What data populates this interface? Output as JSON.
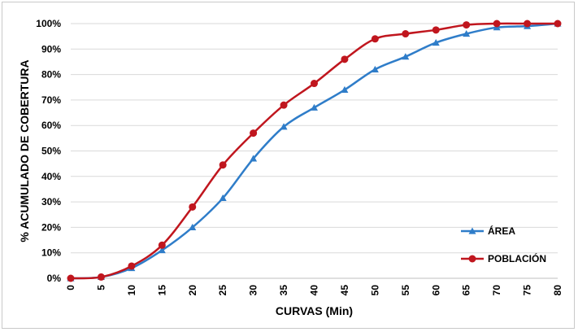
{
  "chart_data": {
    "type": "line",
    "title": "",
    "xlabel": "CURVAS (Min)",
    "ylabel": "% ACUMULADO  DE COBERTURA",
    "x": [
      0,
      5,
      10,
      15,
      20,
      25,
      30,
      35,
      40,
      45,
      50,
      55,
      60,
      65,
      70,
      75,
      80
    ],
    "xlim": [
      0,
      80
    ],
    "ylim": [
      0,
      100
    ],
    "x_ticks": [
      "0",
      "5",
      "10",
      "15",
      "20",
      "25",
      "30",
      "35",
      "40",
      "45",
      "50",
      "55",
      "60",
      "65",
      "70",
      "75",
      "80"
    ],
    "y_ticks": [
      "0%",
      "10%",
      "20%",
      "30%",
      "40%",
      "50%",
      "60%",
      "70%",
      "80%",
      "90%",
      "100%"
    ],
    "grid": "horizontal",
    "legend_position": "right",
    "series": [
      {
        "name": "ÁREA",
        "color": "#2f7dc9",
        "marker": "triangle",
        "values": [
          0,
          0.5,
          4,
          11,
          20,
          31.5,
          47,
          59.5,
          67,
          74,
          82,
          87,
          92.5,
          96,
          98.5,
          99,
          100
        ]
      },
      {
        "name": "POBLACIÓN",
        "color": "#c0161e",
        "marker": "circle",
        "values": [
          0,
          0.5,
          4.8,
          13,
          28,
          44.5,
          57,
          68,
          76.5,
          86,
          94,
          96,
          97.5,
          99.5,
          100,
          100,
          100
        ]
      }
    ]
  }
}
